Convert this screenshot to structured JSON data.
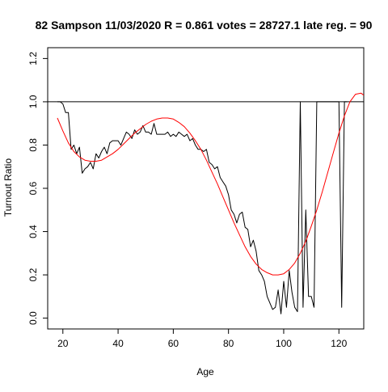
{
  "chart_data": {
    "type": "line",
    "title": "82 Sampson 11/03/2020 R = 0.861 votes = 28727.1 late reg. = 90",
    "xlabel": "Age",
    "ylabel": "Turnout Ratio",
    "xlim": [
      14.5,
      129
    ],
    "ylim": [
      -0.05,
      1.25
    ],
    "xticks": [
      20,
      40,
      60,
      80,
      100,
      120
    ],
    "yticks": [
      0.0,
      0.2,
      0.4,
      0.6,
      0.8,
      1.0,
      1.2
    ],
    "xtick_labels": [
      "20",
      "40",
      "60",
      "80",
      "100",
      "120"
    ],
    "ytick_labels": [
      "0.0",
      "0.2",
      "0.4",
      "0.6",
      "0.8",
      "1.0",
      "1.2"
    ],
    "reference_line": {
      "y": 1.0,
      "color": "#000000"
    },
    "series": [
      {
        "style": "line",
        "color": "#000000",
        "x": [
          18,
          19,
          20,
          21,
          22,
          23,
          24,
          25,
          26,
          27,
          28,
          29,
          30,
          31,
          32,
          33,
          34,
          35,
          36,
          37,
          38,
          39,
          40,
          41,
          42,
          43,
          44,
          45,
          46,
          47,
          48,
          49,
          50,
          51,
          52,
          53,
          54,
          55,
          56,
          57,
          58,
          59,
          60,
          61,
          62,
          63,
          64,
          65,
          66,
          67,
          68,
          69,
          70,
          71,
          72,
          73,
          74,
          75,
          76,
          77,
          78,
          79,
          80,
          81,
          82,
          83,
          84,
          85,
          86,
          87,
          88,
          89,
          90,
          91,
          92,
          93,
          94,
          95,
          96,
          97,
          98,
          99,
          100,
          101,
          102,
          103,
          104,
          105,
          106,
          107,
          108,
          109,
          110,
          111,
          112,
          113,
          114,
          115,
          116,
          117,
          118,
          119,
          120,
          121,
          122,
          123
        ],
        "y": [
          1.0,
          1.0,
          0.99,
          0.95,
          0.95,
          0.78,
          0.8,
          0.76,
          0.79,
          0.67,
          0.69,
          0.7,
          0.72,
          0.69,
          0.76,
          0.74,
          0.77,
          0.79,
          0.76,
          0.81,
          0.82,
          0.82,
          0.82,
          0.8,
          0.83,
          0.86,
          0.85,
          0.83,
          0.87,
          0.85,
          0.86,
          0.89,
          0.86,
          0.86,
          0.85,
          0.9,
          0.85,
          0.85,
          0.85,
          0.85,
          0.86,
          0.84,
          0.85,
          0.84,
          0.86,
          0.85,
          0.84,
          0.85,
          0.82,
          0.83,
          0.8,
          0.78,
          0.78,
          0.77,
          0.78,
          0.72,
          0.71,
          0.69,
          0.7,
          0.65,
          0.63,
          0.61,
          0.57,
          0.5,
          0.48,
          0.44,
          0.48,
          0.49,
          0.42,
          0.41,
          0.33,
          0.36,
          0.31,
          0.22,
          0.2,
          0.17,
          0.1,
          0.07,
          0.04,
          0.05,
          0.13,
          0.02,
          0.17,
          0.05,
          0.22,
          0.12,
          0.05,
          0.03,
          1.0,
          0.05,
          0.5,
          0.1,
          0.1,
          0.05,
          1.0,
          1.0,
          1.0,
          1.0,
          1.0,
          1.0,
          1.0,
          1.0,
          1.0,
          0.05,
          1.0,
          1.0
        ]
      },
      {
        "style": "line",
        "color": "#ff0000",
        "x": [
          18,
          20,
          22,
          24,
          26,
          28,
          30,
          32,
          34,
          36,
          38,
          40,
          42,
          44,
          46,
          48,
          50,
          52,
          54,
          56,
          58,
          60,
          62,
          64,
          66,
          68,
          70,
          72,
          74,
          76,
          78,
          80,
          82,
          84,
          86,
          88,
          90,
          92,
          94,
          96,
          98,
          100,
          102,
          104,
          106,
          108,
          110,
          112,
          114,
          116,
          118,
          120,
          122,
          124,
          126,
          128,
          129
        ],
        "y": [
          0.925,
          0.865,
          0.81,
          0.77,
          0.745,
          0.73,
          0.725,
          0.725,
          0.73,
          0.745,
          0.76,
          0.78,
          0.805,
          0.83,
          0.855,
          0.875,
          0.895,
          0.91,
          0.92,
          0.925,
          0.925,
          0.92,
          0.905,
          0.885,
          0.855,
          0.82,
          0.78,
          0.73,
          0.675,
          0.62,
          0.56,
          0.5,
          0.44,
          0.385,
          0.33,
          0.285,
          0.25,
          0.225,
          0.21,
          0.2,
          0.2,
          0.205,
          0.225,
          0.255,
          0.3,
          0.355,
          0.425,
          0.5,
          0.585,
          0.675,
          0.765,
          0.855,
          0.935,
          1.0,
          1.035,
          1.04,
          1.03
        ]
      }
    ]
  }
}
